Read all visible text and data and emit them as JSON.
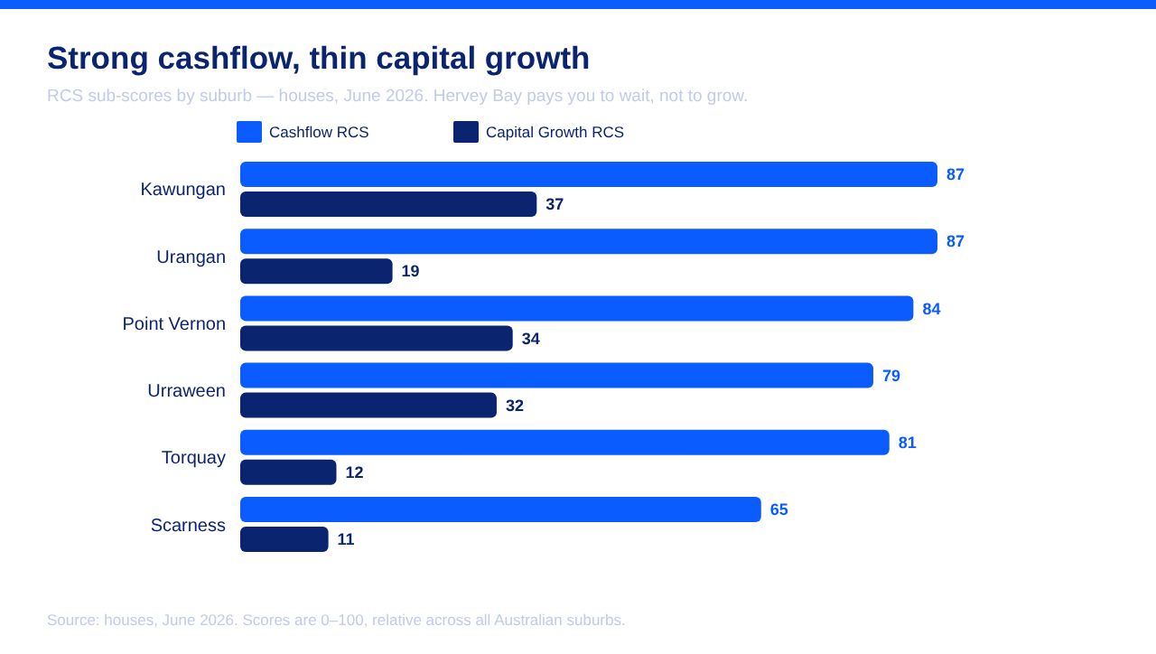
{
  "chart_data": {
    "type": "bar",
    "orientation": "horizontal",
    "title": "Strong cashflow, thin capital growth",
    "subtitle": "RCS sub-scores by suburb — houses, June 2026. Hervey Bay pays you to wait, not to grow.",
    "categories": [
      "Kawungan",
      "Urangan",
      "Point Vernon",
      "Urraween",
      "Torquay",
      "Scarness"
    ],
    "series": [
      {
        "name": "Cashflow RCS",
        "color": "#0a5cff",
        "values": [
          87,
          87,
          84,
          79,
          81,
          65
        ]
      },
      {
        "name": "Capital Growth RCS",
        "color": "#0a2470",
        "values": [
          37,
          19,
          34,
          32,
          12,
          11
        ]
      }
    ],
    "data_labels": true,
    "legend": "top",
    "annotations": [
      "Source: houses, June 2026. Scores are 0–100, relative across all Australian suburbs."
    ]
  }
}
